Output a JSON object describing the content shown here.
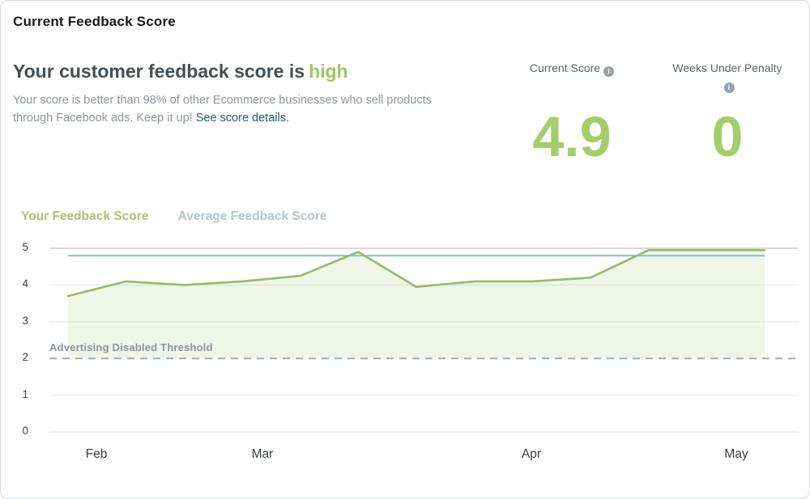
{
  "header": {
    "title": "Current Feedback Score",
    "headline_prefix": "Your customer feedback score is",
    "headline_status": "high",
    "description": "Your score is better than 98% of other Ecommerce businesses who sell products through Facebook ads. Keep it up!",
    "link_text": "See score details."
  },
  "stats": [
    {
      "label": "Current Score",
      "value": "4.9"
    },
    {
      "label": "Weeks Under Penalty",
      "value": "0"
    }
  ],
  "legend": [
    {
      "label": "Your Feedback Score",
      "color": "#b2bf76"
    },
    {
      "label": "Average Feedback Score",
      "color": "#b6c4cd"
    }
  ],
  "icons": {
    "info_glyph": "i"
  },
  "colors": {
    "title_text": "#15181b",
    "headline_text": "#464e54",
    "status_green": "#9dc765",
    "stat_value_green": "#a5cd6b",
    "stat_label_gray": "#5b656c",
    "body_gray": "#8f969b",
    "link_teal": "#265e74",
    "axis_text": "#3e4449",
    "threshold_gray": "#8d9399"
  },
  "chart_data": {
    "type": "area",
    "title": "",
    "xlabel": "",
    "ylabel": "",
    "x_unit": "weeks, Feb through May",
    "ylim": [
      0,
      5
    ],
    "y_ticks": [
      0,
      1,
      2,
      3,
      4,
      5
    ],
    "x_ticks": [
      {
        "label": "Feb",
        "pos": 0.063
      },
      {
        "label": "Mar",
        "pos": 0.284
      },
      {
        "label": "Apr",
        "pos": 0.643
      },
      {
        "label": "May",
        "pos": 0.917
      }
    ],
    "grid": true,
    "legend_position": "top-left",
    "series": [
      {
        "name": "Your Feedback Score",
        "type": "line-area",
        "color": "#99ba67",
        "fill": "rgba(154,185,102,0.15)",
        "values": [
          3.7,
          4.1,
          4.0,
          4.1,
          4.25,
          4.9,
          3.95,
          4.1,
          4.1,
          4.2,
          4.95,
          4.95,
          4.95
        ]
      },
      {
        "name": "Average Feedback Score",
        "type": "constant-line",
        "color": "#9cc3d2",
        "constant": 4.8
      }
    ],
    "threshold": {
      "label": "Advertising Disabled Threshold",
      "value": 2
    }
  }
}
